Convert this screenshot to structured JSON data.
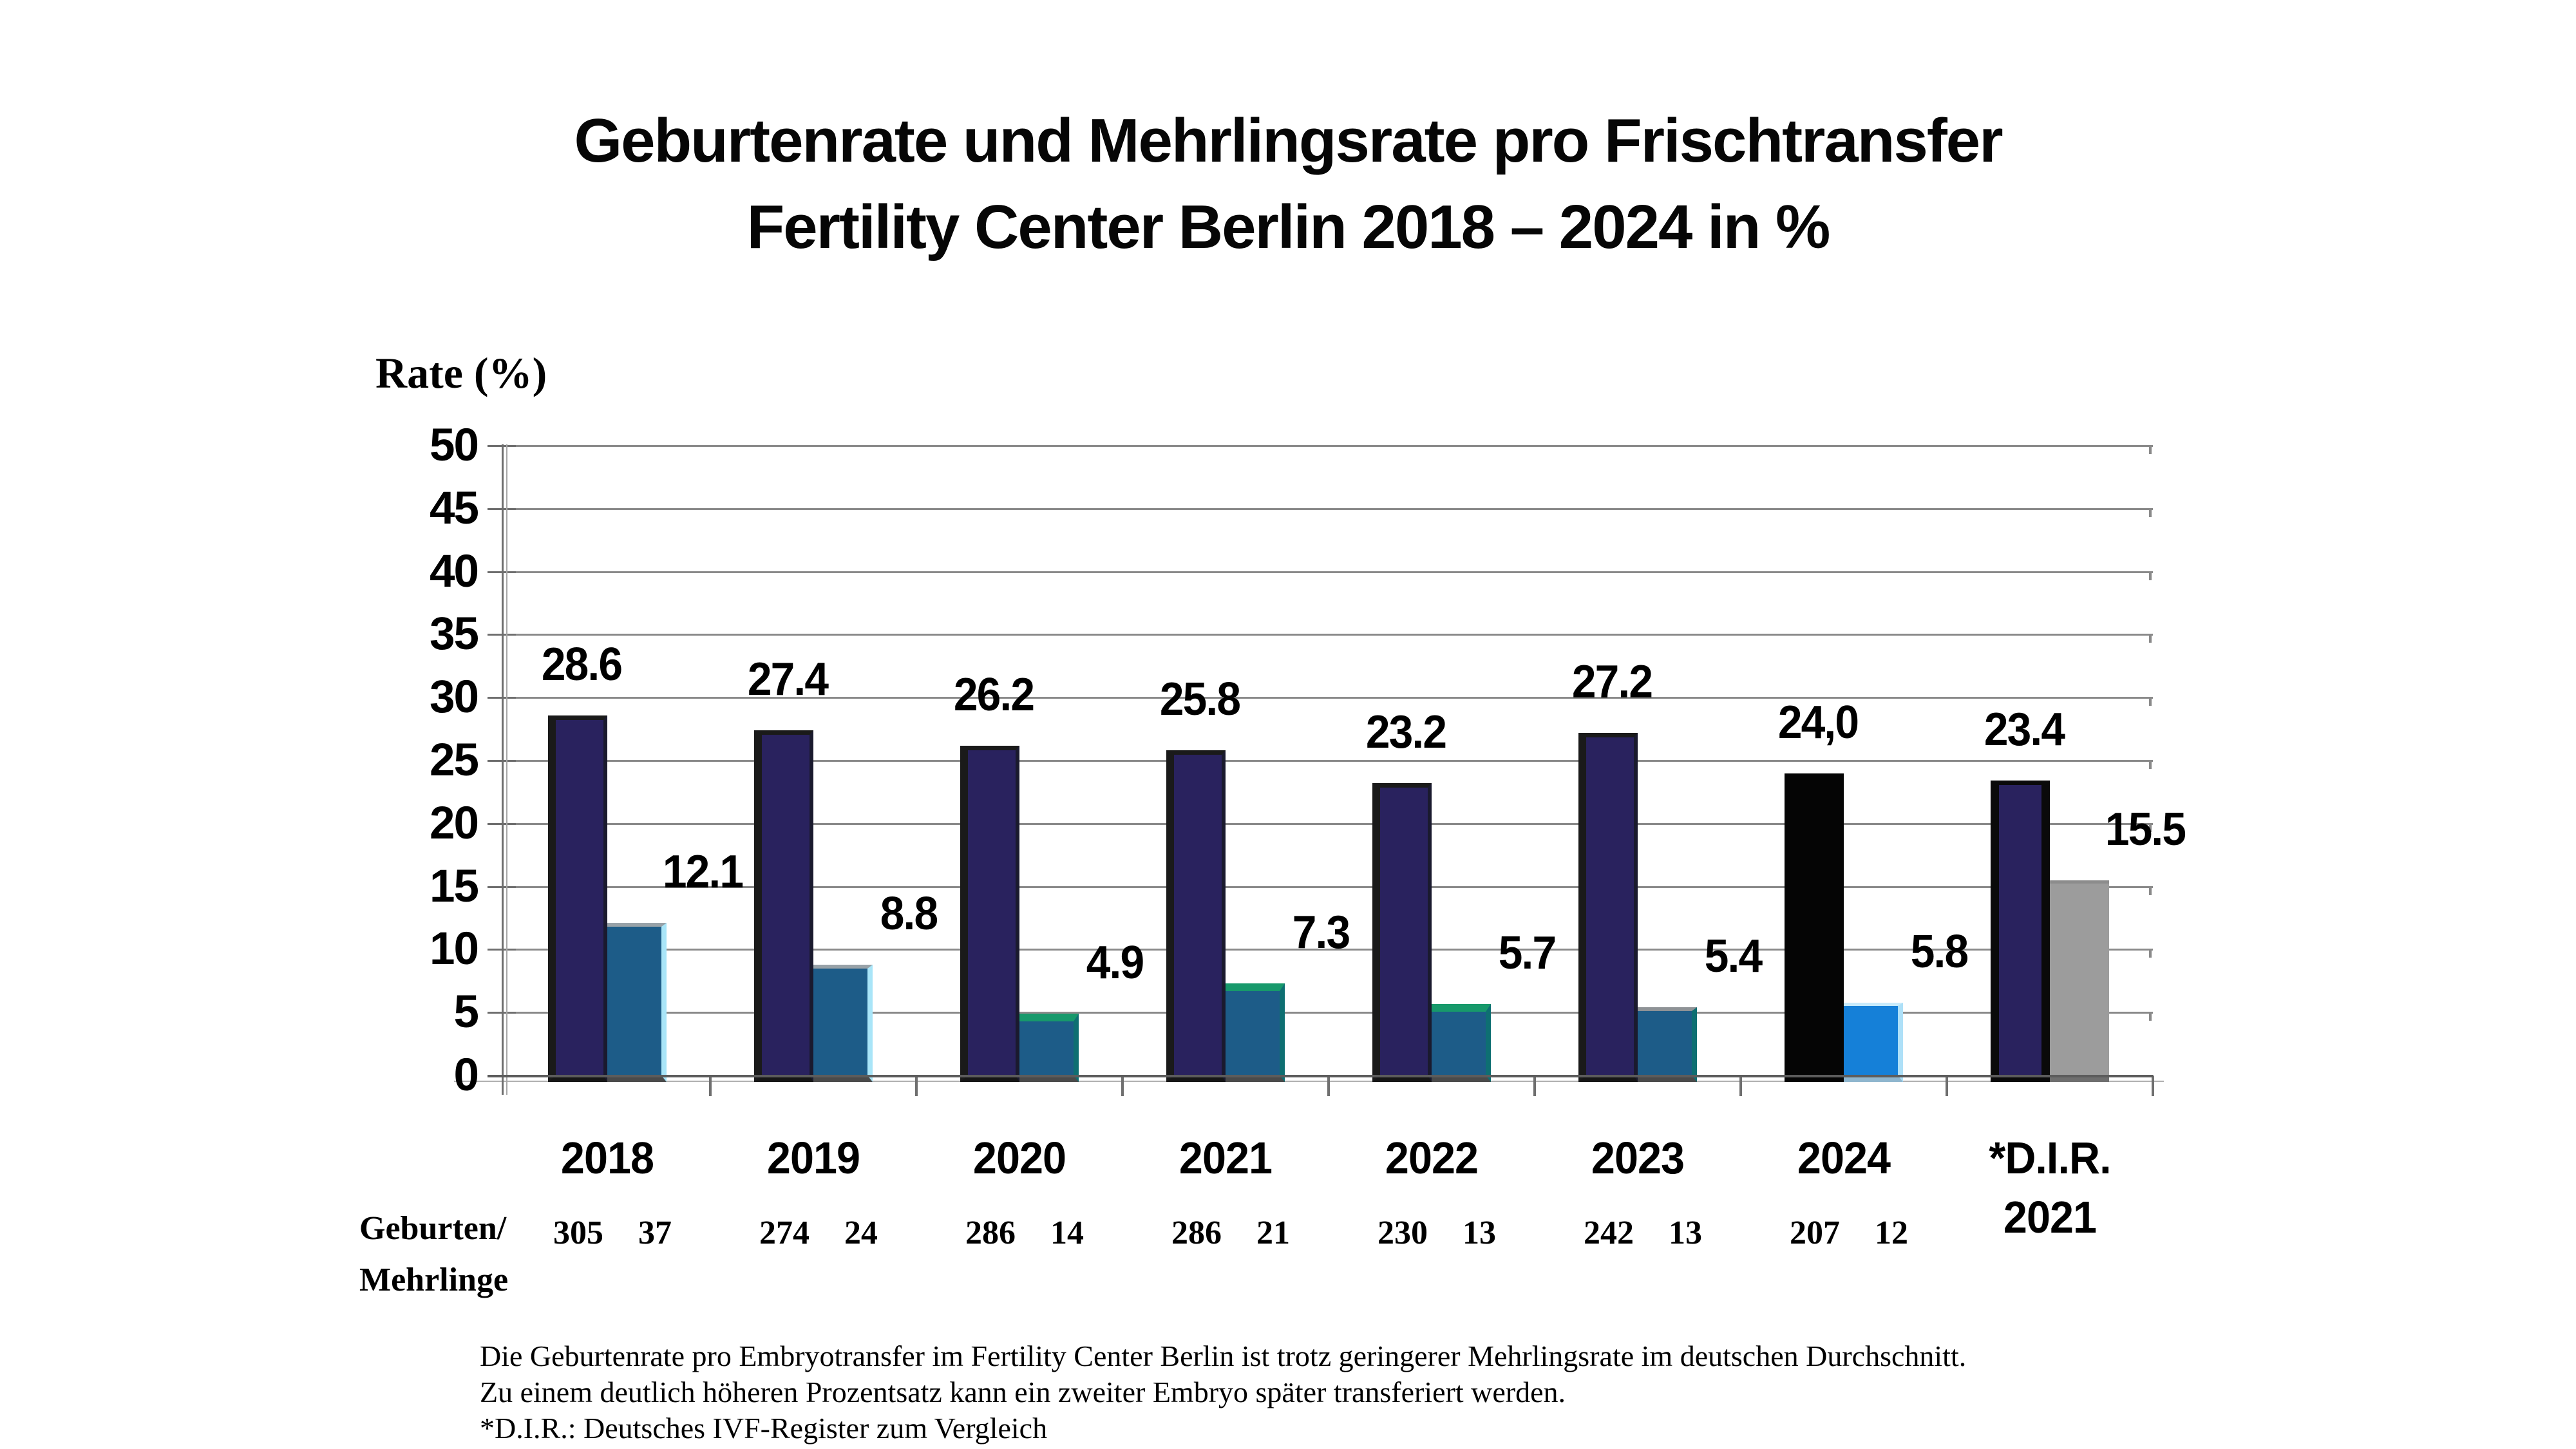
{
  "title": {
    "line1": "Geburtenrate und Mehrlingsrate pro Frischtransfer",
    "line2": "Fertility Center Berlin 2018 – 2024 in %"
  },
  "y_axis": {
    "label": "Rate (%)"
  },
  "row_label": {
    "line1": "Geburten/",
    "line2": "Mehrlinge"
  },
  "footnotes": [
    "Die Geburtenrate pro Embryotransfer im Fertility Center Berlin ist trotz geringerer Mehrlingsrate im deutschen Durchschnitt.",
    "Zu einem deutlich höheren Prozentsatz kann ein zweiter Embryo später transferiert werden.",
    "*D.I.R.: Deutsches IVF-Register zum Vergleich"
  ],
  "chart_data": {
    "type": "bar",
    "title": "Geburtenrate und Mehrlingsrate pro Frischtransfer Fertility Center Berlin 2018 – 2024 in %",
    "xlabel": "",
    "ylabel": "Rate (%)",
    "ylim": [
      0,
      50
    ],
    "ytick_step": 5,
    "ytick_labels": [
      "50",
      "45",
      "40",
      "35",
      "30",
      "25",
      "20",
      "15",
      "10",
      "5",
      "0"
    ],
    "grid": true,
    "legend_position": "none",
    "categories": [
      "2018",
      "2019",
      "2020",
      "2021",
      "2022",
      "2023",
      "2024",
      "*D.I.R. 2021"
    ],
    "category_display": [
      [
        "2018"
      ],
      [
        "2019"
      ],
      [
        "2020"
      ],
      [
        "2021"
      ],
      [
        "2022"
      ],
      [
        "2023"
      ],
      [
        "2024"
      ],
      [
        "*D.I.R.",
        "2021"
      ]
    ],
    "series": [
      {
        "name": "Geburtenrate",
        "values": [
          28.6,
          27.4,
          26.2,
          25.8,
          23.2,
          27.2,
          24.0,
          23.4
        ],
        "display_labels": [
          "28.6",
          "27.4",
          "26.2",
          "25.8",
          "23.2",
          "27.2",
          "24,0",
          "23.4"
        ],
        "variants": [
          "navy",
          "navy",
          "navy",
          "navy",
          "navy",
          "navy",
          "black",
          "navy_framed"
        ]
      },
      {
        "name": "Mehrlingsrate",
        "values": [
          12.1,
          8.8,
          4.9,
          7.3,
          5.7,
          5.4,
          5.8,
          15.5
        ],
        "display_labels": [
          "12.1",
          "8.8",
          "4.9",
          "7.3",
          "5.7",
          "5.4",
          "5.8",
          "15.5"
        ],
        "variants": [
          "steel_cyan",
          "steel_cyan",
          "steel_green",
          "steel_green",
          "steel_green",
          "steel_teal",
          "bright_blue",
          "gray"
        ]
      }
    ],
    "geburten_mehrlinge": [
      [
        "305",
        "37"
      ],
      [
        "274",
        "24"
      ],
      [
        "286",
        "14"
      ],
      [
        "286",
        "21"
      ],
      [
        "230",
        "13"
      ],
      [
        "242",
        "13"
      ],
      [
        "207",
        "12"
      ],
      null
    ]
  },
  "style": {
    "variants": {
      "navy": {
        "bg": "#29225E",
        "bl": "12px solid #1a1a1a",
        "bt": "7px solid #1a1a1a",
        "br": "6px solid #1a1a2e",
        "bb": "10px solid #161616"
      },
      "navy_framed": {
        "bg": "#29225E",
        "bl": "13px solid #0a0a0a",
        "bt": "7px solid #0a0a0a",
        "br": "13px solid #0a0a0a",
        "bb": "10px solid #0a0a0a"
      },
      "black": {
        "bg": "#050505",
        "bl": "0",
        "bt": "0",
        "br": "0",
        "bb": "10px solid #050505"
      },
      "steel_cyan": {
        "bg": "#1D5C88",
        "bl": "0",
        "bt": "6px solid #98a2a8",
        "br": "8px solid #a9e5f8",
        "bb": "10px solid #4a4a4a"
      },
      "steel_green": {
        "bg": "#1D5C88",
        "bl": "0",
        "bt": "12px solid #17996b",
        "br": "8px solid #0e6f72",
        "bb": "10px solid #4a4a4a"
      },
      "steel_teal": {
        "bg": "#1D5C88",
        "bl": "0",
        "bt": "6px solid #8e9296",
        "br": "8px solid #0e6f72",
        "bb": "10px solid #4a4a4a"
      },
      "bright_blue": {
        "bg": "#1580D8",
        "bl": "0",
        "bt": "5px solid #c8ebfb",
        "br": "8px solid #aee0f8",
        "bb": "10px solid #8fb6ce"
      },
      "gray": {
        "bg": "#9C9C9C",
        "bl": "0",
        "bt": "5px solid #8c8c8c",
        "br": "0",
        "bb": "10px solid #6e6e6e"
      }
    },
    "gridline_color": "#8a8a8a",
    "axis_color": "#6f6f6f",
    "text_color": "#000000"
  }
}
